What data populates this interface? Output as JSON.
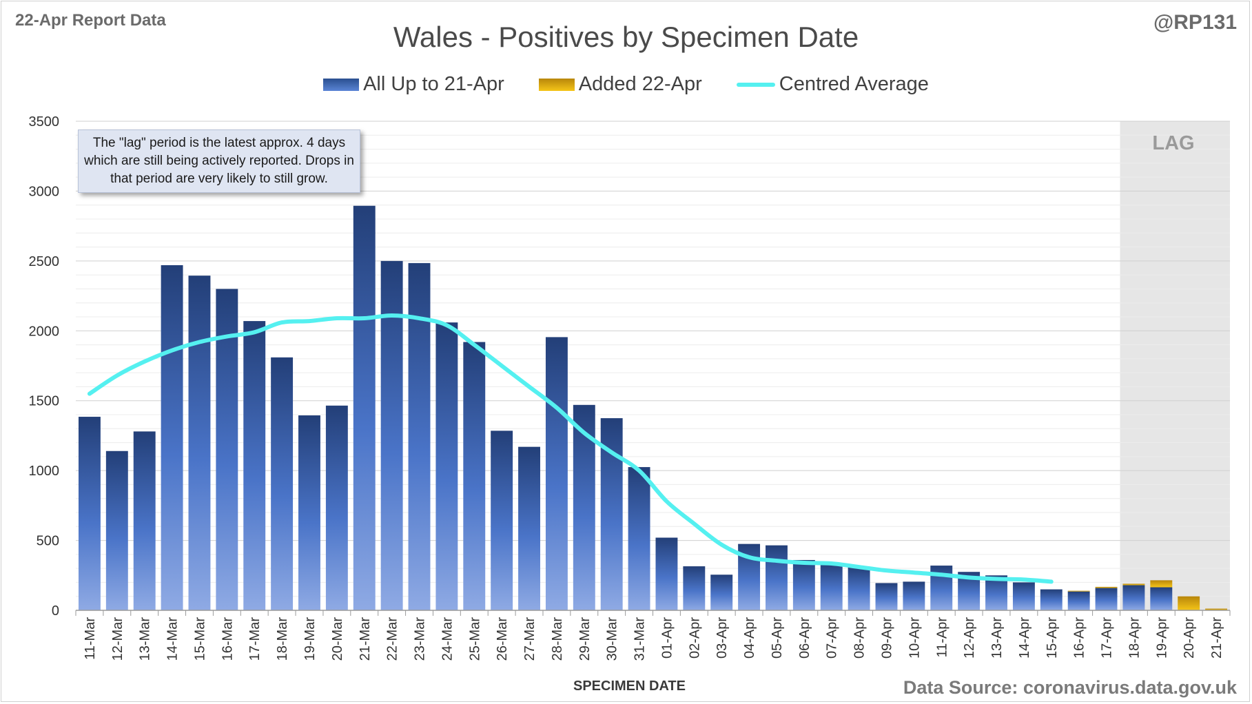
{
  "header": {
    "report_label": "22-Apr Report Data",
    "author": "@RP131",
    "source": "Data Source: coronavirus.data.gov.uk"
  },
  "note_text": "The \"lag\" period is the latest approx. 4 days which are still being actively reported.  Drops in that period are very likely to still grow.",
  "lag_label": "LAG",
  "colors": {
    "bar_dark": "#2a4a86",
    "bar_light": "#8aa8e6",
    "added_dark": "#b8860b",
    "added_light": "#f5c518",
    "average_line": "#55f0f0",
    "lag_shading": "#e6e6e6"
  },
  "chart_data": {
    "type": "bar",
    "title": "Wales - Positives by Specimen Date",
    "xlabel": "SPECIMEN DATE",
    "ylabel": "",
    "ylim": [
      0,
      3500
    ],
    "yticks": [
      0,
      500,
      1000,
      1500,
      2000,
      2500,
      3000,
      3500
    ],
    "grid": true,
    "stacked": true,
    "legend_position": "top-center",
    "lag_categories": [
      "18-Apr",
      "19-Apr",
      "20-Apr",
      "21-Apr"
    ],
    "categories": [
      "11-Mar",
      "12-Mar",
      "13-Mar",
      "14-Mar",
      "15-Mar",
      "16-Mar",
      "17-Mar",
      "18-Mar",
      "19-Mar",
      "20-Mar",
      "21-Mar",
      "22-Mar",
      "23-Mar",
      "24-Mar",
      "25-Mar",
      "26-Mar",
      "27-Mar",
      "28-Mar",
      "29-Mar",
      "30-Mar",
      "31-Mar",
      "01-Apr",
      "02-Apr",
      "03-Apr",
      "04-Apr",
      "05-Apr",
      "06-Apr",
      "07-Apr",
      "08-Apr",
      "09-Apr",
      "10-Apr",
      "11-Apr",
      "12-Apr",
      "13-Apr",
      "14-Apr",
      "15-Apr",
      "16-Apr",
      "17-Apr",
      "18-Apr",
      "19-Apr",
      "20-Apr",
      "21-Apr"
    ],
    "series": [
      {
        "name": "All Up to 21-Apr",
        "kind": "bar",
        "values": [
          1385,
          1140,
          1280,
          2470,
          2395,
          2300,
          2070,
          1810,
          1395,
          1465,
          2895,
          2500,
          2485,
          2060,
          1920,
          1285,
          1170,
          1955,
          1470,
          1375,
          1025,
          520,
          315,
          255,
          475,
          465,
          360,
          335,
          310,
          195,
          205,
          320,
          275,
          250,
          200,
          150,
          135,
          160,
          180,
          165,
          0,
          0
        ]
      },
      {
        "name": "Added 22-Apr",
        "kind": "bar",
        "values": [
          0,
          0,
          0,
          0,
          0,
          0,
          0,
          0,
          0,
          0,
          0,
          0,
          0,
          0,
          0,
          0,
          0,
          0,
          0,
          0,
          0,
          0,
          0,
          0,
          0,
          0,
          0,
          0,
          0,
          0,
          0,
          0,
          0,
          0,
          0,
          0,
          5,
          8,
          10,
          50,
          100,
          12
        ]
      },
      {
        "name": "Centred Average",
        "kind": "line",
        "values": [
          1550,
          1680,
          1780,
          1860,
          1920,
          1960,
          1990,
          2060,
          2070,
          2090,
          2090,
          2110,
          2090,
          2040,
          1900,
          1750,
          1600,
          1450,
          1270,
          1130,
          1000,
          780,
          620,
          470,
          380,
          355,
          340,
          335,
          310,
          285,
          270,
          255,
          235,
          225,
          220,
          205,
          null,
          null,
          null,
          null,
          null,
          null
        ]
      }
    ]
  }
}
